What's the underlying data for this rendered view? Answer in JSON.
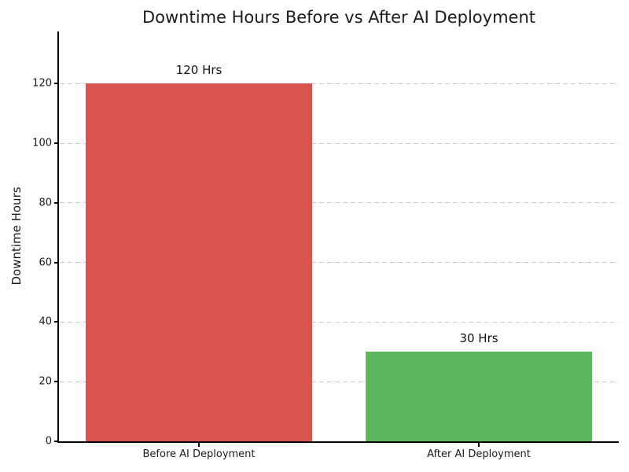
{
  "chart_data": {
    "type": "bar",
    "title": "Downtime Hours Before vs After AI Deployment",
    "xlabel": "",
    "ylabel": "Downtime Hours",
    "categories": [
      "Before AI Deployment",
      "After AI Deployment"
    ],
    "values": [
      120,
      30
    ],
    "bar_labels": [
      "120 Hrs",
      "30 Hrs"
    ],
    "bar_colors": [
      "#d9534f",
      "#5cb85c"
    ],
    "ylim": [
      0,
      137.5
    ],
    "yticks": [
      0,
      20,
      40,
      60,
      80,
      100,
      120
    ],
    "grid": "horizontal-dashed",
    "legend": "none",
    "colors": {
      "grid": "#cccccc",
      "spine": "#000000",
      "text": "#1a1a1a",
      "background": "#ffffff"
    }
  }
}
